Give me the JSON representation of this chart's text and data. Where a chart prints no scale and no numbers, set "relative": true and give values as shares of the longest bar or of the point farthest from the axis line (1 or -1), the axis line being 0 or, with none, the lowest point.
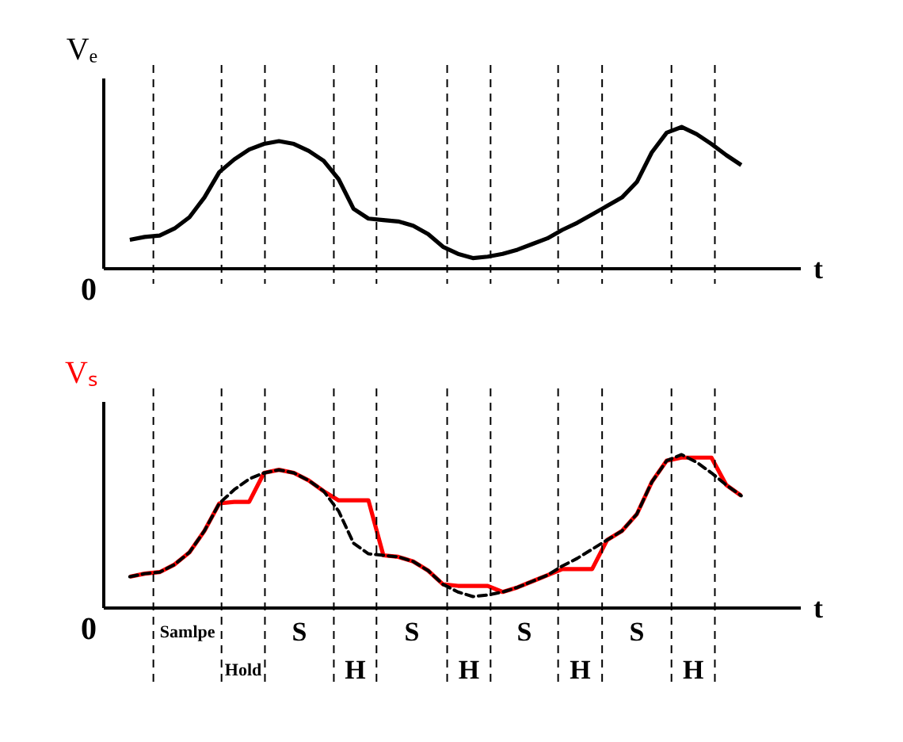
{
  "chart_data": [
    {
      "type": "line",
      "relative": true,
      "xlabel": "t",
      "ylabel": "Vₑ",
      "marker": "none",
      "annotations": [
        "0"
      ],
      "categories": [
        null,
        null,
        null,
        null,
        null,
        null,
        null,
        null,
        null,
        null,
        null,
        null,
        null,
        null,
        null,
        null,
        null,
        null,
        null,
        null,
        null,
        null,
        null,
        null,
        null,
        null,
        null,
        null,
        null,
        null,
        null,
        null,
        null,
        null,
        null,
        null,
        null,
        null,
        null,
        null,
        null,
        null
      ],
      "series": [
        {
          "color": "#000000",
          "line_style": "solid",
          "values": [
            0.2,
            0.22,
            0.23,
            0.28,
            0.36,
            0.5,
            0.68,
            0.77,
            0.84,
            0.88,
            0.9,
            0.88,
            0.83,
            0.76,
            0.63,
            0.42,
            0.35,
            0.34,
            0.33,
            0.3,
            0.24,
            0.15,
            0.1,
            0.07,
            0.08,
            0.1,
            0.13,
            0.17,
            0.21,
            0.27,
            0.32,
            0.38,
            0.44,
            0.5,
            0.61,
            0.82,
            0.96,
            1.0,
            0.95,
            0.88,
            0.8,
            0.73
          ]
        }
      ]
    },
    {
      "type": "line",
      "relative": true,
      "xlabel": "t",
      "ylabel": "Vₛ",
      "marker": "none",
      "categories": [
        null,
        null,
        null,
        null,
        null,
        null,
        null,
        null,
        null,
        null,
        null,
        null,
        null,
        null,
        null,
        null,
        null,
        null,
        null,
        null,
        null,
        null,
        null,
        null,
        null,
        null,
        null,
        null,
        null,
        null,
        null,
        null,
        null,
        null,
        null,
        null,
        null,
        null,
        null,
        null,
        null,
        null
      ],
      "series": [
        {
          "color": "#000000",
          "line_style": "dashed",
          "values": [
            0.2,
            0.22,
            0.23,
            0.28,
            0.36,
            0.5,
            0.68,
            0.77,
            0.84,
            0.88,
            0.9,
            0.88,
            0.83,
            0.76,
            0.63,
            0.42,
            0.35,
            0.34,
            0.33,
            0.3,
            0.24,
            0.15,
            0.1,
            0.07,
            0.08,
            0.1,
            0.13,
            0.17,
            0.21,
            0.27,
            0.32,
            0.38,
            0.44,
            0.5,
            0.61,
            0.82,
            0.96,
            1.0,
            0.95,
            0.88,
            0.8,
            0.73
          ]
        },
        {
          "color": "#ff0000",
          "line_style": "solid",
          "values": [
            0.2,
            0.22,
            0.23,
            0.28,
            0.36,
            0.5,
            0.68,
            0.69,
            0.69,
            0.88,
            0.9,
            0.88,
            0.83,
            0.76,
            0.7,
            0.7,
            0.7,
            0.34,
            0.33,
            0.3,
            0.24,
            0.15,
            0.14,
            0.14,
            0.14,
            0.1,
            0.13,
            0.17,
            0.21,
            0.25,
            0.25,
            0.25,
            0.44,
            0.5,
            0.61,
            0.82,
            0.96,
            0.98,
            0.98,
            0.98,
            0.8,
            0.73
          ]
        }
      ],
      "annotations": [
        "0",
        "Samlpe",
        "Hold",
        "S",
        "H",
        "S",
        "H",
        "S",
        "H",
        "S",
        "H"
      ]
    }
  ]
}
